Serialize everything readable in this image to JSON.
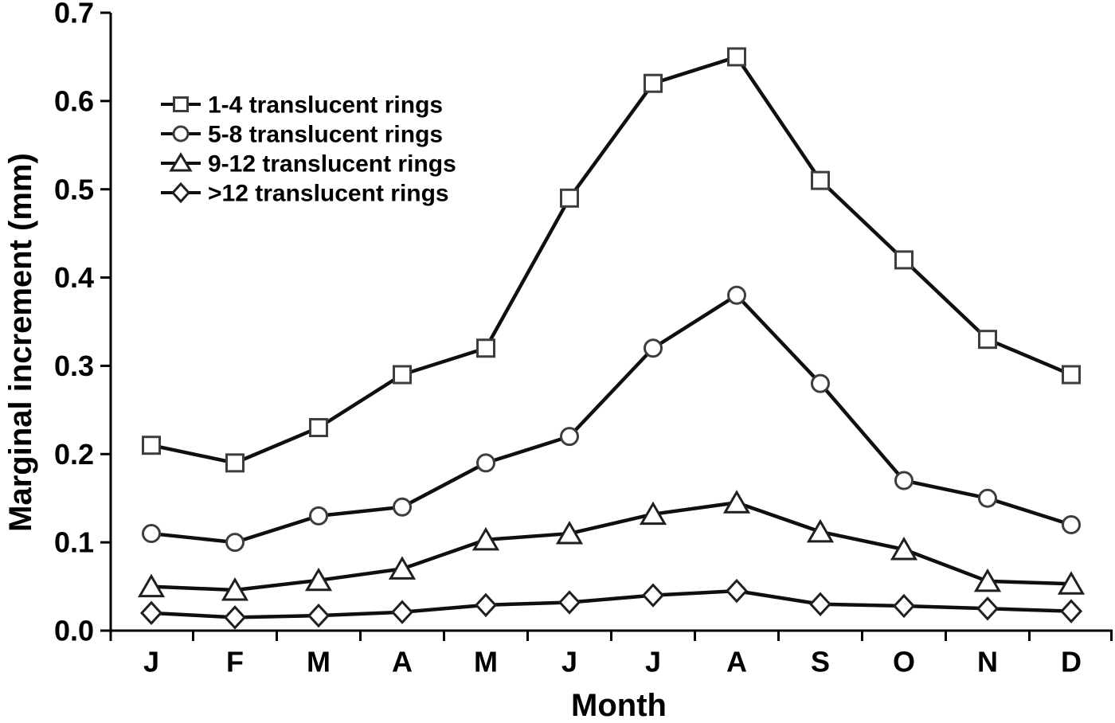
{
  "figure": {
    "background": "#ffffff",
    "line_color": "#0f0f0f",
    "axis_color": "#000000",
    "marker_fill": "#ffffff"
  },
  "chart_data": {
    "type": "line",
    "title": "",
    "xlabel": "Month",
    "ylabel": "Marginal increment (mm)",
    "categories": [
      "J",
      "F",
      "M",
      "A",
      "M",
      "J",
      "J",
      "A",
      "S",
      "O",
      "N",
      "D"
    ],
    "ylim": [
      0.0,
      0.7
    ],
    "ytick_step": 0.1,
    "ytick_labels": [
      "0.0",
      "0.1",
      "0.2",
      "0.3",
      "0.4",
      "0.5",
      "0.6",
      "0.7"
    ],
    "grid": false,
    "legend_position": "upper-left-inside",
    "series": [
      {
        "name": "1-4 translucent rings",
        "marker": "square",
        "marker_color": "#3d3d3d",
        "values": [
          0.21,
          0.19,
          0.23,
          0.29,
          0.32,
          0.49,
          0.62,
          0.65,
          0.51,
          0.42,
          0.33,
          0.29
        ]
      },
      {
        "name": "5-8 translucent rings",
        "marker": "circle",
        "marker_color": "#3d3d3d",
        "values": [
          0.11,
          0.1,
          0.13,
          0.14,
          0.19,
          0.22,
          0.32,
          0.38,
          0.28,
          0.17,
          0.15,
          0.12
        ]
      },
      {
        "name": "9-12 translucent rings",
        "marker": "triangle",
        "marker_color": "#1f1f1f",
        "values": [
          0.05,
          0.046,
          0.057,
          0.07,
          0.103,
          0.11,
          0.132,
          0.145,
          0.112,
          0.092,
          0.056,
          0.053
        ]
      },
      {
        "name": ">12 translucent rings",
        "marker": "diamond",
        "marker_color": "#1f1f1f",
        "values": [
          0.02,
          0.015,
          0.017,
          0.021,
          0.029,
          0.032,
          0.04,
          0.045,
          0.03,
          0.028,
          0.025,
          0.022
        ]
      }
    ]
  }
}
